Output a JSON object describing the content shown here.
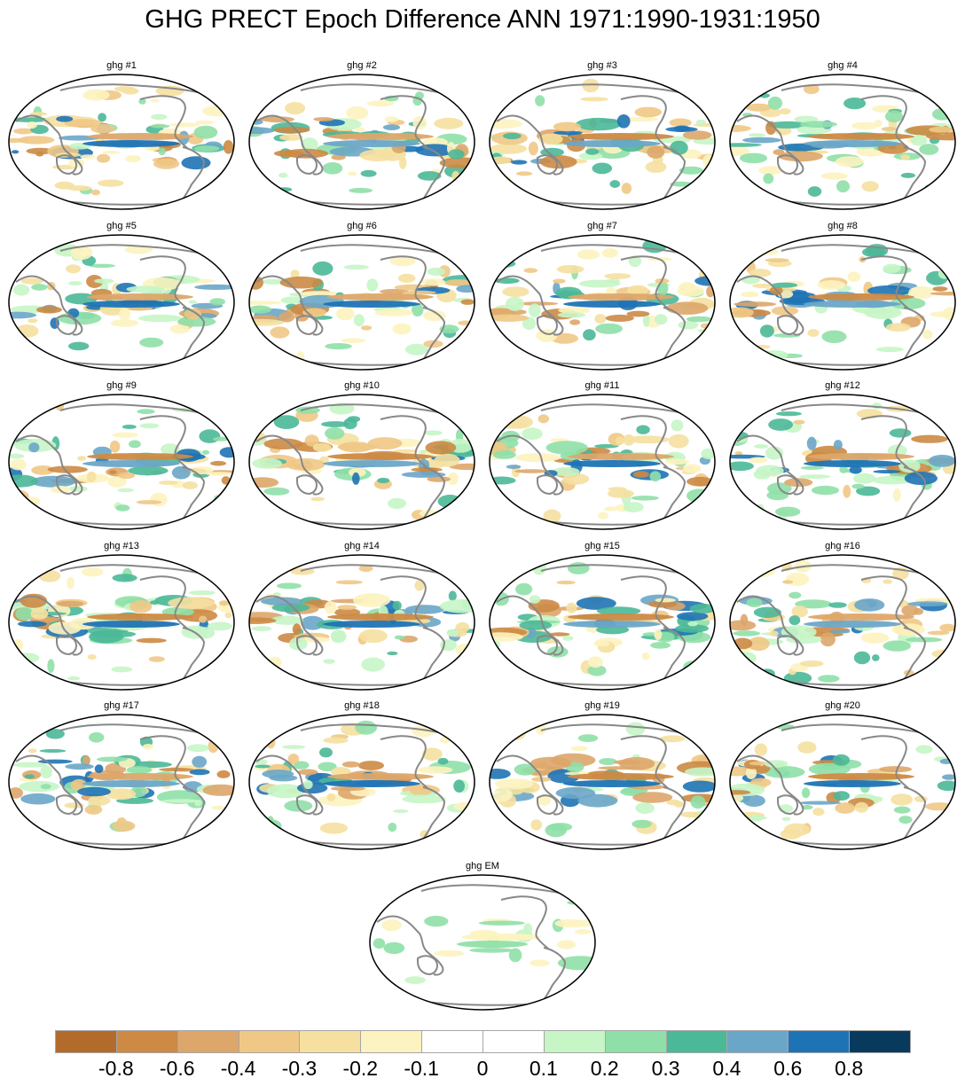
{
  "title": "GHG PRECT Epoch Difference ANN 1971:1990-1931:1950",
  "panels": [
    {
      "title": "ghg #1"
    },
    {
      "title": "ghg #2"
    },
    {
      "title": "ghg #3"
    },
    {
      "title": "ghg #4"
    },
    {
      "title": "ghg #5"
    },
    {
      "title": "ghg #6"
    },
    {
      "title": "ghg #7"
    },
    {
      "title": "ghg #8"
    },
    {
      "title": "ghg #9"
    },
    {
      "title": "ghg #10"
    },
    {
      "title": "ghg #11"
    },
    {
      "title": "ghg #12"
    },
    {
      "title": "ghg #13"
    },
    {
      "title": "ghg #14"
    },
    {
      "title": "ghg #15"
    },
    {
      "title": "ghg #16"
    },
    {
      "title": "ghg #17"
    },
    {
      "title": "ghg #18"
    },
    {
      "title": "ghg #19"
    },
    {
      "title": "ghg #20"
    },
    {
      "title": "ghg EM"
    }
  ],
  "colorbar": {
    "colors": [
      "#b36b2c",
      "#cc8a44",
      "#dda66a",
      "#f0c886",
      "#f5e0a0",
      "#fdf3c0",
      "#ffffff",
      "#ffffff",
      "#c6f5c6",
      "#8fe0a8",
      "#4bb898",
      "#6aa6c8",
      "#1e73b5",
      "#083a5e"
    ],
    "labels": [
      "-0.8",
      "-0.6",
      "-0.4",
      "-0.3",
      "-0.2",
      "-0.1",
      "0",
      "0.1",
      "0.2",
      "0.3",
      "0.4",
      "0.6",
      "0.8"
    ]
  }
}
